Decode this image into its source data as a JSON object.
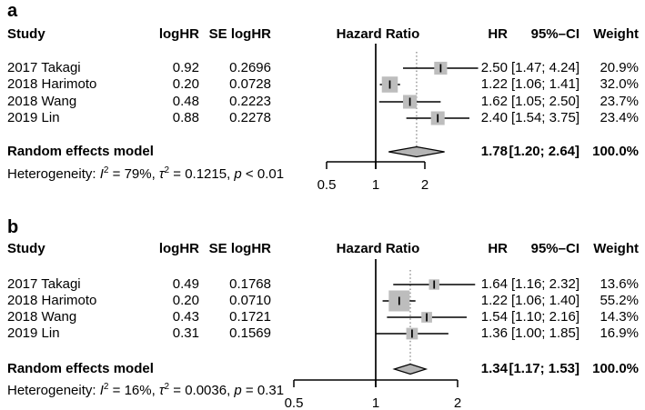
{
  "figure": {
    "panels": [
      {
        "label": "a",
        "columns": {
          "study": "Study",
          "loghr": "logHR",
          "se": "SE logHR",
          "plot": "Hazard Ratio",
          "hr": "HR",
          "ci": "95%–CI",
          "weight": "Weight"
        },
        "rows": [
          {
            "study": "2017 Takagi",
            "loghr": "0.92",
            "se": "0.2696",
            "hr": "2.50",
            "ci": "[1.47; 4.24]",
            "weight": "20.9%"
          },
          {
            "study": "2018 Harimoto",
            "loghr": "0.20",
            "se": "0.0728",
            "hr": "1.22",
            "ci": "[1.06; 1.41]",
            "weight": "32.0%"
          },
          {
            "study": "2018 Wang",
            "loghr": "0.48",
            "se": "0.2223",
            "hr": "1.62",
            "ci": "[1.05; 2.50]",
            "weight": "23.7%"
          },
          {
            "study": "2019 Lin",
            "loghr": "0.88",
            "se": "0.2278",
            "hr": "2.40",
            "ci": "[1.54; 3.75]",
            "weight": "23.4%"
          }
        ],
        "pooled": {
          "label": "Random effects model",
          "hr": "1.78",
          "ci": "[1.20; 2.64]",
          "weight": "100.0%"
        },
        "heterogeneity": {
          "prefix": "Heterogeneity: ",
          "i": "I",
          "sup_i": "2",
          "seg1": " = 79%, ",
          "tau": "τ",
          "sup_tau": "2",
          "seg2": " = 0.1215, ",
          "p": "p",
          "seg3": " < 0.01"
        }
      },
      {
        "label": "b",
        "columns": {
          "study": "Study",
          "loghr": "logHR",
          "se": "SE logHR",
          "plot": "Hazard Ratio",
          "hr": "HR",
          "ci": "95%–CI",
          "weight": "Weight"
        },
        "rows": [
          {
            "study": "2017 Takagi",
            "loghr": "0.49",
            "se": "0.1768",
            "hr": "1.64",
            "ci": "[1.16; 2.32]",
            "weight": "13.6%"
          },
          {
            "study": "2018 Harimoto",
            "loghr": "0.20",
            "se": "0.0710",
            "hr": "1.22",
            "ci": "[1.06; 1.40]",
            "weight": "55.2%"
          },
          {
            "study": "2018 Wang",
            "loghr": "0.43",
            "se": "0.1721",
            "hr": "1.54",
            "ci": "[1.10; 2.16]",
            "weight": "14.3%"
          },
          {
            "study": "2019 Lin",
            "loghr": "0.31",
            "se": "0.1569",
            "hr": "1.36",
            "ci": "[1.00; 1.85]",
            "weight": "16.9%"
          }
        ],
        "pooled": {
          "label": "Random effects model",
          "hr": "1.34",
          "ci": "[1.17; 1.53]",
          "weight": "100.0%"
        },
        "heterogeneity": {
          "prefix": "Heterogeneity: ",
          "i": "I",
          "sup_i": "2",
          "seg1": " = 16%, ",
          "tau": "τ",
          "sup_tau": "2",
          "seg2": " = 0.0036, ",
          "p": "p",
          "seg3": " = 0.31"
        }
      }
    ]
  },
  "chart_data": [
    {
      "type": "forest",
      "panel": "a",
      "title": "Hazard Ratio",
      "x_scale": "log",
      "x_ticks": [
        0.5,
        1,
        2
      ],
      "x_tick_labels": [
        "0.5",
        "1",
        "2"
      ],
      "ref_line": 1,
      "studies": [
        {
          "name": "2017 Takagi",
          "loghr": 0.92,
          "se": 0.2696,
          "hr": 2.5,
          "lo": 1.47,
          "hi": 4.24,
          "weight": 20.9
        },
        {
          "name": "2018 Harimoto",
          "loghr": 0.2,
          "se": 0.0728,
          "hr": 1.22,
          "lo": 1.06,
          "hi": 1.41,
          "weight": 32.0
        },
        {
          "name": "2018 Wang",
          "loghr": 0.48,
          "se": 0.2223,
          "hr": 1.62,
          "lo": 1.05,
          "hi": 2.5,
          "weight": 23.7
        },
        {
          "name": "2019 Lin",
          "loghr": 0.88,
          "se": 0.2278,
          "hr": 2.4,
          "lo": 1.54,
          "hi": 3.75,
          "weight": 23.4
        }
      ],
      "pooled": {
        "model": "Random effects model",
        "hr": 1.78,
        "lo": 1.2,
        "hi": 2.64,
        "weight": 100.0,
        "i2": "79%",
        "tau2": 0.1215,
        "p": "< 0.01"
      }
    },
    {
      "type": "forest",
      "panel": "b",
      "title": "Hazard Ratio",
      "x_scale": "log",
      "x_ticks": [
        0.5,
        1,
        2
      ],
      "x_tick_labels": [
        "0.5",
        "1",
        "2"
      ],
      "ref_line": 1,
      "studies": [
        {
          "name": "2017 Takagi",
          "loghr": 0.49,
          "se": 0.1768,
          "hr": 1.64,
          "lo": 1.16,
          "hi": 2.32,
          "weight": 13.6
        },
        {
          "name": "2018 Harimoto",
          "loghr": 0.2,
          "se": 0.071,
          "hr": 1.22,
          "lo": 1.06,
          "hi": 1.4,
          "weight": 55.2
        },
        {
          "name": "2018 Wang",
          "loghr": 0.43,
          "se": 0.1721,
          "hr": 1.54,
          "lo": 1.1,
          "hi": 2.16,
          "weight": 14.3
        },
        {
          "name": "2019 Lin",
          "loghr": 0.31,
          "se": 0.1569,
          "hr": 1.36,
          "lo": 1.0,
          "hi": 1.85,
          "weight": 16.9
        }
      ],
      "pooled": {
        "model": "Random effects model",
        "hr": 1.34,
        "lo": 1.17,
        "hi": 1.53,
        "weight": 100.0,
        "i2": "16%",
        "tau2": 0.0036,
        "p": "= 0.31"
      }
    }
  ]
}
